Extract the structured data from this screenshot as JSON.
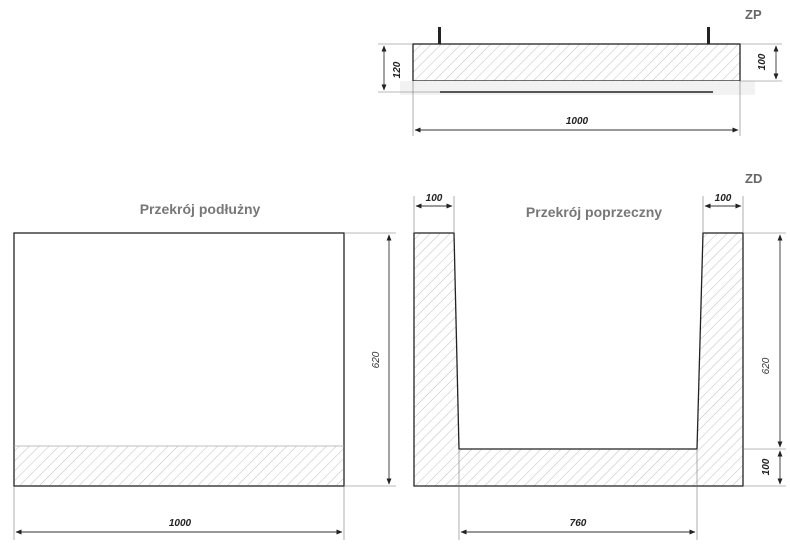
{
  "labels": {
    "zp": "ZP",
    "zd": "ZD",
    "longitudinal_section": "Przekrój podłużny",
    "cross_section": "Przekrój poprzeczny"
  },
  "dimensions": {
    "lid_height_left": "120",
    "lid_height_right": "100",
    "lid_length": "1000",
    "long_height": "620",
    "long_length": "1000",
    "cross_wall_left": "100",
    "cross_wall_right": "100",
    "cross_height": "620",
    "cross_bottom": "100",
    "cross_inner_width": "760"
  }
}
